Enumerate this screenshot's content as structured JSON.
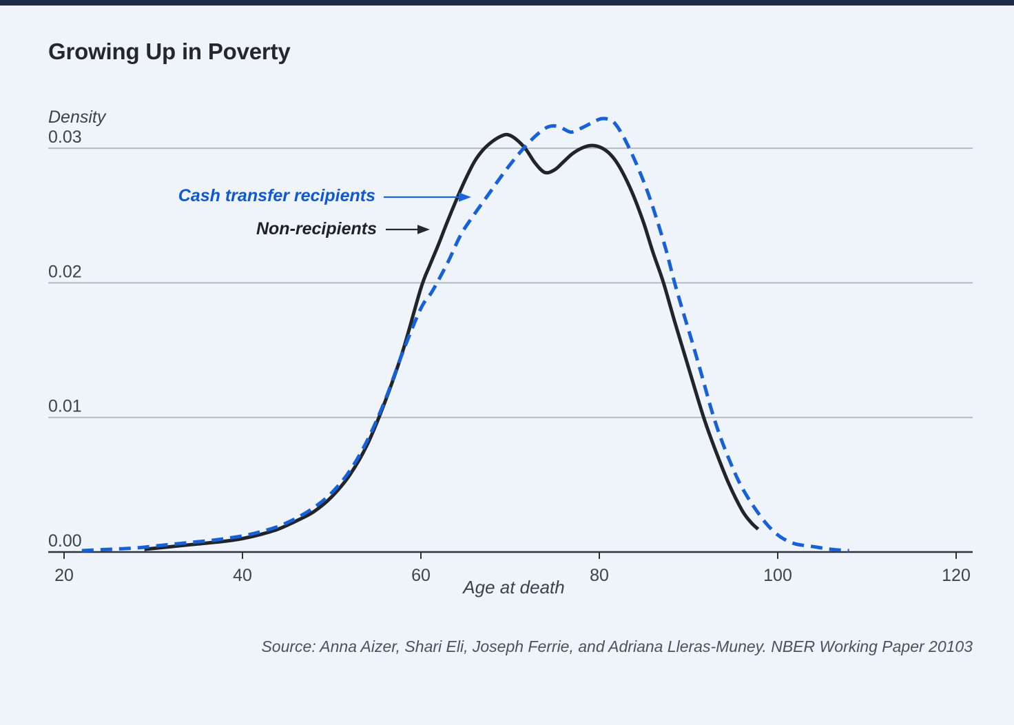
{
  "page": {
    "background": "#eff3fa",
    "top_bar_color": "#1e2b47"
  },
  "title": "Growing Up in Poverty",
  "axis": {
    "y_title": "Density",
    "x_title": "Age at death"
  },
  "annotations": {
    "cash_label": "Cash transfer recipients",
    "non_label": "Non-recipients"
  },
  "source": "Source: Anna Aizer, Shari Eli, Joseph Ferrie, and Adriana Lleras-Muney. NBER Working Paper 20103",
  "chart_data": {
    "type": "line",
    "title": "Growing Up in Poverty",
    "xlabel": "Age at death",
    "ylabel": "Density",
    "xlim": [
      20,
      120
    ],
    "ylim": [
      0,
      0.0335
    ],
    "x_ticks": [
      20,
      40,
      60,
      80,
      100,
      120
    ],
    "y_ticks": [
      0,
      0.01,
      0.02,
      0.03
    ],
    "y_tick_labels": [
      "0.00",
      "0.01",
      "0.02",
      "0.03"
    ],
    "grid": "horizontal",
    "legend_position": "annotated-left",
    "colors": {
      "grid": "#b4bac4",
      "axis": "#2f3339",
      "tick_text": "#3e434a"
    },
    "series": [
      {
        "name": "Non-recipients",
        "color": "#212428",
        "style": "solid",
        "points": [
          [
            29,
            0.0002
          ],
          [
            32,
            0.0004
          ],
          [
            35,
            0.0006
          ],
          [
            38,
            0.0008
          ],
          [
            40,
            0.001
          ],
          [
            42,
            0.0013
          ],
          [
            44,
            0.0017
          ],
          [
            46,
            0.0023
          ],
          [
            48,
            0.003
          ],
          [
            50,
            0.0041
          ],
          [
            52,
            0.0057
          ],
          [
            54,
            0.008
          ],
          [
            56,
            0.0112
          ],
          [
            58,
            0.015
          ],
          [
            60,
            0.0196
          ],
          [
            61,
            0.0213
          ],
          [
            62,
            0.0229
          ],
          [
            63,
            0.0246
          ],
          [
            64,
            0.0262
          ],
          [
            65,
            0.0277
          ],
          [
            66,
            0.029
          ],
          [
            67,
            0.0299
          ],
          [
            68,
            0.0305
          ],
          [
            69,
            0.0309
          ],
          [
            69.8,
            0.031
          ],
          [
            70.8,
            0.0306
          ],
          [
            71.8,
            0.0299
          ],
          [
            72.8,
            0.0289
          ],
          [
            73.9,
            0.0282
          ],
          [
            75,
            0.0284
          ],
          [
            76,
            0.029
          ],
          [
            77,
            0.0296
          ],
          [
            78,
            0.03
          ],
          [
            79,
            0.0302
          ],
          [
            80,
            0.0301
          ],
          [
            81,
            0.0297
          ],
          [
            82,
            0.0289
          ],
          [
            83,
            0.0277
          ],
          [
            84,
            0.0262
          ],
          [
            85,
            0.0244
          ],
          [
            86,
            0.0223
          ],
          [
            87.2,
            0.02
          ],
          [
            88.5,
            0.017
          ],
          [
            90,
            0.0137
          ],
          [
            91.7,
            0.01
          ],
          [
            93,
            0.0076
          ],
          [
            94.5,
            0.0051
          ],
          [
            96,
            0.0031
          ],
          [
            97,
            0.0022
          ],
          [
            97.8,
            0.0017
          ]
        ]
      },
      {
        "name": "Cash transfer recipients",
        "color": "#1660d8",
        "style": "dashed",
        "points": [
          [
            22,
            0.0001
          ],
          [
            25,
            0.0002
          ],
          [
            28,
            0.0003
          ],
          [
            31,
            0.0005
          ],
          [
            34,
            0.0007
          ],
          [
            37,
            0.0009
          ],
          [
            40,
            0.0012
          ],
          [
            42,
            0.0015
          ],
          [
            44,
            0.0019
          ],
          [
            46,
            0.0025
          ],
          [
            48,
            0.0033
          ],
          [
            50,
            0.0044
          ],
          [
            52,
            0.006
          ],
          [
            54,
            0.0083
          ],
          [
            56,
            0.0113
          ],
          [
            58,
            0.0149
          ],
          [
            60,
            0.0181
          ],
          [
            61.3,
            0.0194
          ],
          [
            63,
            0.0215
          ],
          [
            64.5,
            0.0236
          ],
          [
            66,
            0.0251
          ],
          [
            67.5,
            0.0265
          ],
          [
            69,
            0.0279
          ],
          [
            70.5,
            0.0292
          ],
          [
            71.8,
            0.0302
          ],
          [
            73,
            0.031
          ],
          [
            74.3,
            0.0316
          ],
          [
            75.5,
            0.0316
          ],
          [
            76.8,
            0.0312
          ],
          [
            78,
            0.0315
          ],
          [
            79.2,
            0.0319
          ],
          [
            80.3,
            0.0322
          ],
          [
            81.5,
            0.032
          ],
          [
            82.5,
            0.0311
          ],
          [
            83.5,
            0.0298
          ],
          [
            84.5,
            0.0283
          ],
          [
            85.5,
            0.0266
          ],
          [
            86.5,
            0.0246
          ],
          [
            87.5,
            0.0224
          ],
          [
            88.4,
            0.0201
          ],
          [
            89.5,
            0.0176
          ],
          [
            90.5,
            0.0154
          ],
          [
            91.5,
            0.0131
          ],
          [
            92.6,
            0.0105
          ],
          [
            93.6,
            0.0085
          ],
          [
            94.6,
            0.0068
          ],
          [
            95.6,
            0.0053
          ],
          [
            96.6,
            0.0041
          ],
          [
            97.6,
            0.0031
          ],
          [
            98.6,
            0.0022
          ],
          [
            99.6,
            0.0015
          ],
          [
            100.6,
            0.001
          ],
          [
            102,
            0.0006
          ],
          [
            104,
            0.0004
          ],
          [
            106,
            0.0002
          ],
          [
            108,
            0.0001
          ]
        ]
      }
    ]
  }
}
